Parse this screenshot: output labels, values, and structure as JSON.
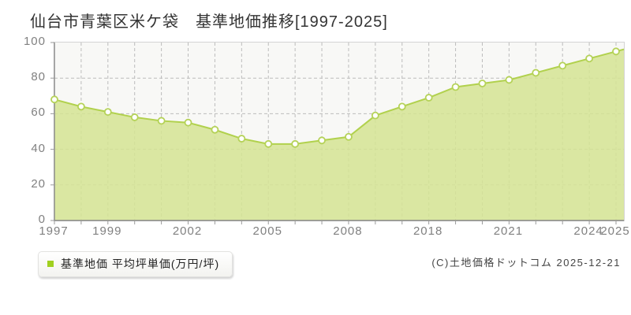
{
  "page": {
    "title": "仙台市青葉区米ケ袋　基準地価推移[1997-2025]"
  },
  "legend": {
    "label": "基準地価 平均坪単価(万円/坪)"
  },
  "footer": {
    "copyright": "(C)土地価格ドットコム 2025-12-21"
  },
  "chart_data": {
    "type": "area",
    "title": "仙台市青葉区米ケ袋　基準地価推移[1997-2025]",
    "series": [
      {
        "name": "基準地価 平均坪単価(万円/坪)",
        "values": [
          68,
          64,
          61,
          58,
          56,
          55,
          51,
          46,
          43,
          43,
          45,
          47,
          59,
          64,
          69,
          75,
          77,
          79,
          83,
          87,
          91,
          95
        ]
      }
    ],
    "x_tick_labels": [
      "1997",
      "1999",
      "2002",
      "2005",
      "2008",
      "2018",
      "2021",
      "2024",
      "2025"
    ],
    "x_tick_indices": [
      0,
      2,
      5,
      8,
      11,
      14,
      17,
      20,
      21
    ],
    "labeled_points": {
      "1997": 68,
      "1999": 61,
      "2002": 55,
      "2005": 43,
      "2008": 47,
      "2018": 69,
      "2021": 79,
      "2024": 91,
      "2025": 95
    },
    "xlabel": "",
    "ylabel": "万円/坪",
    "ylim": [
      0,
      100
    ],
    "y_ticks": [
      0,
      20,
      40,
      60,
      80,
      100
    ],
    "grid": true,
    "legend_position": "bottom-left",
    "colors": {
      "area_fill": "#d5e493",
      "line": "#b1d14d",
      "marker_fill": "#ffffff",
      "marker_stroke": "#b5d258",
      "plot_bg": "#f8f8f6",
      "plot_border": "#d4d4d4",
      "axis_line": "#8a8a8a",
      "gridline": "#bcbcbc",
      "tick": "#9a9a9a",
      "axis_text": "#808080",
      "title_text": "#333333",
      "legend_bullet": "#a0d020"
    }
  }
}
